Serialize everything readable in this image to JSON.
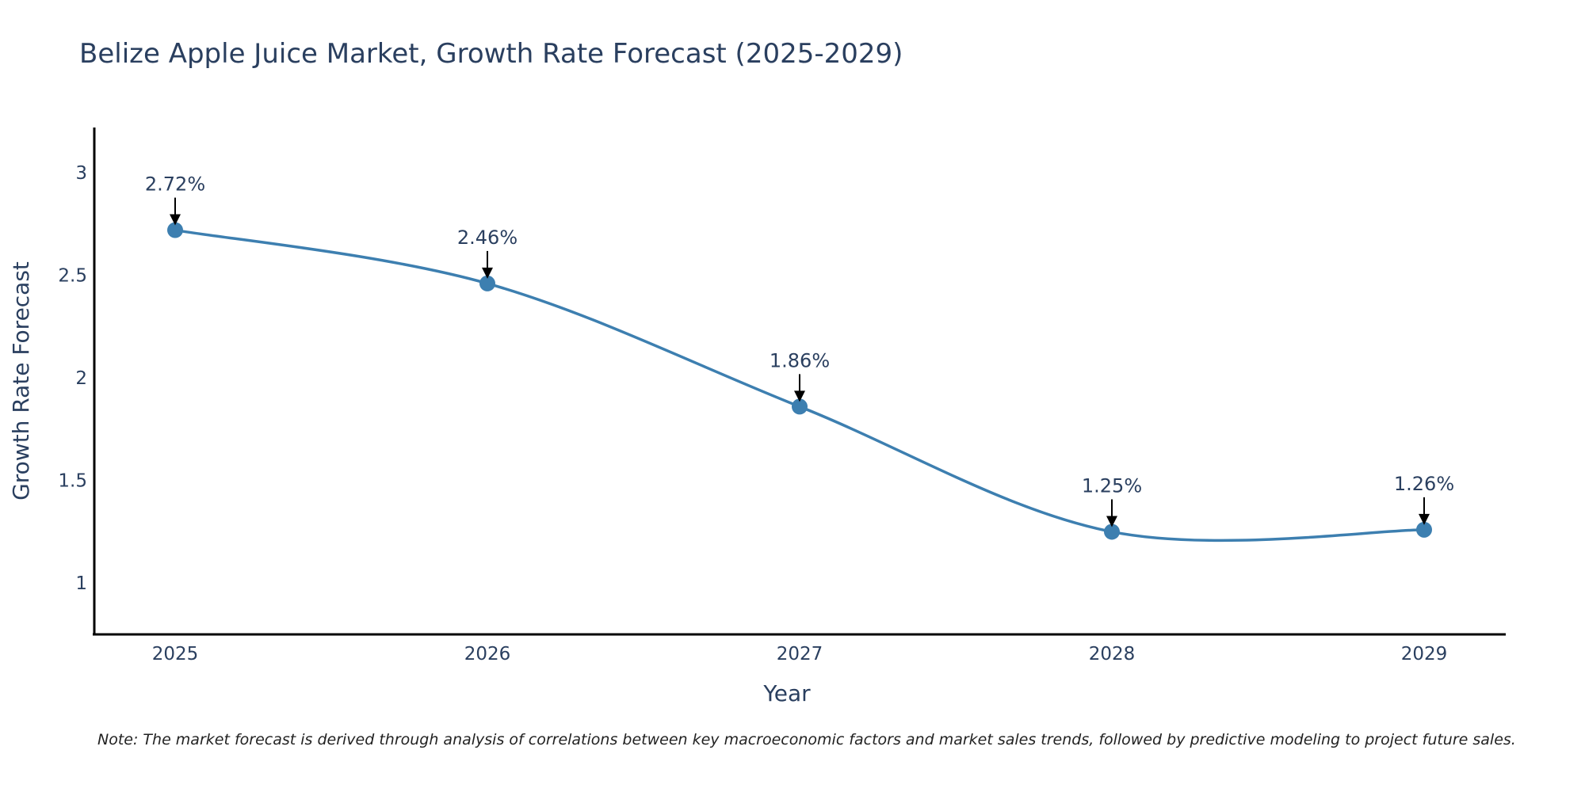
{
  "chart_data": {
    "type": "line",
    "title": "Belize Apple Juice Market, Growth Rate Forecast (2025-2029)",
    "xlabel": "Year",
    "ylabel": "Growth Rate Forecast",
    "categories": [
      "2025",
      "2026",
      "2027",
      "2028",
      "2029"
    ],
    "series": [
      {
        "name": "Growth Rate Forecast",
        "values": [
          2.72,
          2.46,
          1.86,
          1.25,
          1.26
        ],
        "labels": [
          "2.72%",
          "2.46%",
          "1.86%",
          "1.25%",
          "1.26%"
        ],
        "color": "#3d7fb0"
      }
    ],
    "yticks": [
      "1",
      "1.5",
      "2",
      "2.5",
      "3"
    ],
    "ylim": [
      0.75,
      3.22
    ],
    "grid": false,
    "note": "Note: The market forecast is derived through analysis of correlations between key macroeconomic factors and market sales trends, followed by predictive modeling to project future sales."
  }
}
